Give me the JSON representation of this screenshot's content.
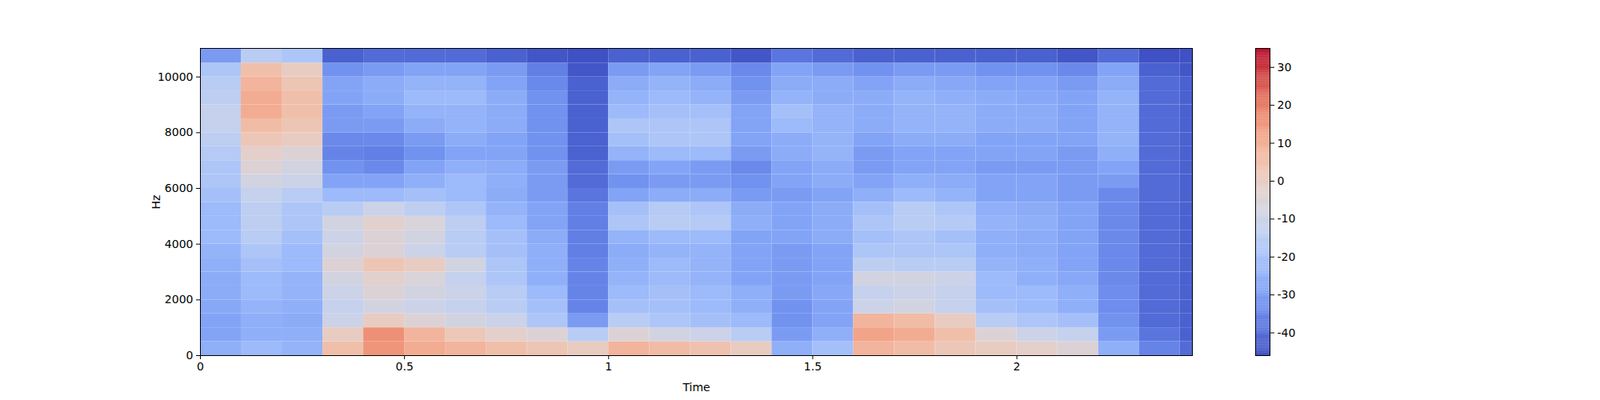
{
  "chart_data": {
    "type": "heatmap",
    "xlabel": "Time",
    "ylabel": "Hz",
    "xlim": [
      0,
      2.43
    ],
    "ylim": [
      0,
      11025
    ],
    "xticks": [
      0,
      0.5,
      1,
      1.5,
      2
    ],
    "yticks": [
      0,
      2000,
      4000,
      6000,
      8000,
      10000
    ],
    "colorbar_range": [
      -46,
      35
    ],
    "colorbar_ticks": [
      -40,
      -30,
      -20,
      -10,
      0,
      10,
      20,
      30
    ],
    "time": [
      0,
      0.1,
      0.2,
      0.3,
      0.4,
      0.5,
      0.6,
      0.7,
      0.8,
      0.9,
      1.0,
      1.1,
      1.2,
      1.3,
      1.4,
      1.5,
      1.6,
      1.7,
      1.8,
      1.9,
      2.0,
      2.1,
      2.2,
      2.3,
      2.4
    ],
    "frequency": [
      0,
      500,
      1000,
      1500,
      2000,
      2500,
      3000,
      3500,
      4000,
      4500,
      5000,
      5500,
      6000,
      6500,
      7000,
      7500,
      8000,
      8500,
      9000,
      9500,
      10000,
      10500
    ],
    "cells": [
      [
        -25,
        -22,
        -24,
        5,
        15,
        10,
        8,
        5,
        3,
        0,
        8,
        6,
        4,
        0,
        -25,
        -20,
        8,
        6,
        2,
        0,
        -2,
        -5,
        -25,
        -35,
        -40
      ],
      [
        -28,
        -25,
        -25,
        0,
        16,
        8,
        2,
        -2,
        -5,
        -15,
        -5,
        -8,
        -10,
        -15,
        -30,
        -25,
        12,
        10,
        5,
        -5,
        -10,
        -12,
        -30,
        -38,
        -42
      ],
      [
        -28,
        -25,
        -26,
        -10,
        0,
        -5,
        -8,
        -10,
        -18,
        -30,
        -15,
        -18,
        -20,
        -22,
        -32,
        -28,
        8,
        6,
        0,
        -15,
        -18,
        -20,
        -32,
        -40,
        -42
      ],
      [
        -27,
        -24,
        -25,
        -12,
        -8,
        -10,
        -12,
        -15,
        -20,
        -35,
        -20,
        -20,
        -22,
        -25,
        -32,
        -28,
        -10,
        -8,
        -12,
        -20,
        -22,
        -25,
        -33,
        -40,
        -42
      ],
      [
        -26,
        -22,
        -24,
        -10,
        -5,
        -8,
        -10,
        -15,
        -22,
        -35,
        -22,
        -20,
        -22,
        -25,
        -30,
        -27,
        -12,
        -10,
        -12,
        -22,
        -22,
        -25,
        -33,
        -40,
        -42
      ],
      [
        -26,
        -22,
        -24,
        -8,
        -3,
        -6,
        -12,
        -18,
        -25,
        -35,
        -24,
        -22,
        -24,
        -28,
        -30,
        -28,
        -8,
        -8,
        -10,
        -22,
        -25,
        -27,
        -34,
        -40,
        -42
      ],
      [
        -25,
        -20,
        -22,
        -5,
        3,
        0,
        -8,
        -18,
        -25,
        -35,
        -25,
        -22,
        -24,
        -28,
        -30,
        -28,
        -14,
        -15,
        -15,
        -24,
        -25,
        -28,
        -34,
        -40,
        -42
      ],
      [
        -24,
        -18,
        -22,
        -8,
        -5,
        -10,
        -15,
        -20,
        -25,
        -36,
        -26,
        -24,
        -24,
        -28,
        -30,
        -28,
        -18,
        -18,
        -18,
        -25,
        -26,
        -28,
        -34,
        -40,
        -42
      ],
      [
        -22,
        -15,
        -20,
        -10,
        -5,
        -8,
        -15,
        -20,
        -26,
        -36,
        -24,
        -22,
        -22,
        -28,
        -28,
        -26,
        -20,
        -18,
        -20,
        -25,
        -26,
        -28,
        -34,
        -40,
        -42
      ],
      [
        -22,
        -14,
        -18,
        -8,
        -3,
        -6,
        -14,
        -22,
        -28,
        -36,
        -18,
        -15,
        -16,
        -25,
        -28,
        -26,
        -18,
        -15,
        -16,
        -24,
        -25,
        -28,
        -34,
        -40,
        -42
      ],
      [
        -22,
        -14,
        -18,
        -15,
        -10,
        -14,
        -18,
        -24,
        -28,
        -36,
        -20,
        -16,
        -18,
        -26,
        -28,
        -26,
        -20,
        -15,
        -18,
        -25,
        -26,
        -28,
        -34,
        -40,
        -42
      ],
      [
        -20,
        -12,
        -15,
        -22,
        -22,
        -20,
        -22,
        -26,
        -30,
        -38,
        -28,
        -26,
        -26,
        -30,
        -30,
        -28,
        -25,
        -22,
        -24,
        -28,
        -28,
        -30,
        -34,
        -40,
        -42
      ],
      [
        -18,
        -8,
        -10,
        -28,
        -28,
        -25,
        -22,
        -25,
        -30,
        -40,
        -32,
        -30,
        -30,
        -32,
        -28,
        -26,
        -28,
        -25,
        -26,
        -28,
        -28,
        -30,
        -30,
        -40,
        -42
      ],
      [
        -18,
        -5,
        -8,
        -32,
        -34,
        -28,
        -25,
        -26,
        -30,
        -40,
        -30,
        -28,
        -30,
        -34,
        -28,
        -26,
        -30,
        -28,
        -28,
        -30,
        -30,
        -30,
        -28,
        -40,
        -42
      ],
      [
        -16,
        -2,
        -5,
        -35,
        -36,
        -32,
        -28,
        -28,
        -32,
        -42,
        -24,
        -22,
        -22,
        -30,
        -26,
        -24,
        -30,
        -28,
        -28,
        -28,
        -28,
        -30,
        -25,
        -40,
        -42
      ],
      [
        -14,
        2,
        0,
        -34,
        -34,
        -30,
        -26,
        -28,
        -32,
        -42,
        -20,
        -18,
        -18,
        -28,
        -26,
        -24,
        -28,
        -26,
        -26,
        -28,
        -28,
        -28,
        -24,
        -40,
        -42
      ],
      [
        -12,
        6,
        3,
        -30,
        -30,
        -26,
        -24,
        -26,
        -32,
        -42,
        -18,
        -18,
        -18,
        -28,
        -22,
        -24,
        -26,
        -24,
        -24,
        -26,
        -26,
        -28,
        -24,
        -40,
        -42
      ],
      [
        -12,
        10,
        5,
        -30,
        -28,
        -24,
        -24,
        -26,
        -32,
        -42,
        -22,
        -20,
        -20,
        -28,
        -20,
        -24,
        -26,
        -24,
        -24,
        -26,
        -26,
        -28,
        -24,
        -40,
        -42
      ],
      [
        -14,
        10,
        5,
        -28,
        -26,
        -22,
        -22,
        -26,
        -32,
        -42,
        -24,
        -22,
        -24,
        -30,
        -24,
        -26,
        -26,
        -24,
        -25,
        -26,
        -27,
        -28,
        -24,
        -40,
        -42
      ],
      [
        -15,
        8,
        3,
        -28,
        -26,
        -24,
        -24,
        -28,
        -34,
        -42,
        -26,
        -24,
        -26,
        -32,
        -26,
        -26,
        -28,
        -26,
        -27,
        -28,
        -28,
        -30,
        -26,
        -40,
        -42
      ],
      [
        -18,
        5,
        0,
        -32,
        -30,
        -28,
        -28,
        -30,
        -36,
        -44,
        -30,
        -28,
        -30,
        -34,
        -28,
        -30,
        -32,
        -30,
        -30,
        -32,
        -32,
        -34,
        -28,
        -42,
        -44
      ],
      [
        -30,
        -15,
        -18,
        -42,
        -40,
        -40,
        -40,
        -42,
        -44,
        -45,
        -42,
        -42,
        -42,
        -44,
        -38,
        -40,
        -42,
        -42,
        -42,
        -42,
        -42,
        -44,
        -40,
        -45,
        -45
      ]
    ]
  }
}
